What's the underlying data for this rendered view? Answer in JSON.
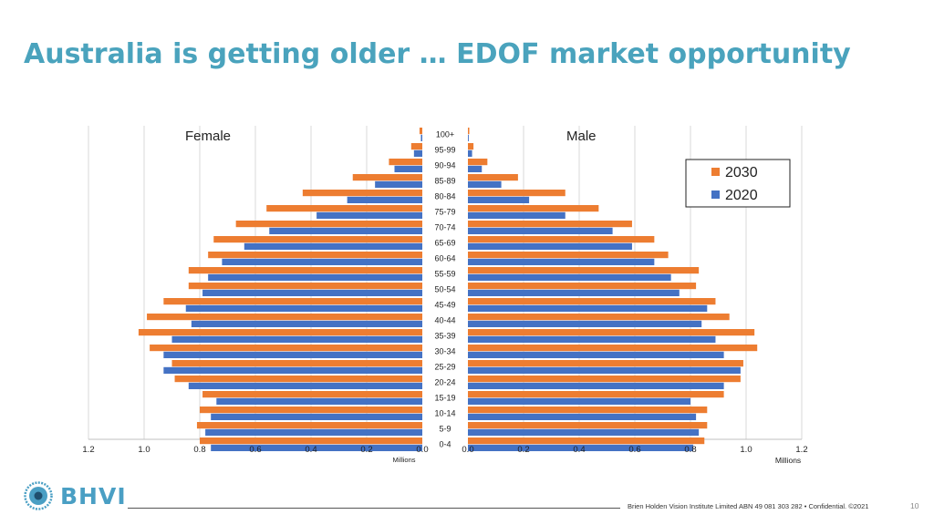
{
  "slide": {
    "title": "Australia is getting older … EDOF market opportunity",
    "footer": "Brien Holden Vision Institute Limited ABN 49 081 303 282 • Confidential. ©2021",
    "page_number": "10",
    "logo_text": "BHVI"
  },
  "colors": {
    "title": "#4aa3bd",
    "s2030": "#ed7d31",
    "s2020": "#4472c4",
    "grid": "#d9d9d9"
  },
  "chart_data": {
    "type": "bar",
    "orientation": "horizontal-population-pyramid",
    "categories": [
      "100+",
      "95-99",
      "90-94",
      "85-89",
      "80-84",
      "75-79",
      "70-74",
      "65-69",
      "60-64",
      "55-59",
      "50-54",
      "45-49",
      "40-44",
      "35-39",
      "30-34",
      "25-29",
      "20-24",
      "15-19",
      "10-14",
      "5-9",
      "0-4"
    ],
    "panels": [
      {
        "name": "Female",
        "series": [
          {
            "name": "2030",
            "values": [
              0.01,
              0.04,
              0.12,
              0.25,
              0.43,
              0.56,
              0.67,
              0.75,
              0.77,
              0.84,
              0.84,
              0.93,
              0.99,
              1.02,
              0.98,
              0.9,
              0.89,
              0.79,
              0.8,
              0.81,
              0.8
            ]
          },
          {
            "name": "2020",
            "values": [
              0.005,
              0.03,
              0.1,
              0.17,
              0.27,
              0.38,
              0.55,
              0.64,
              0.72,
              0.77,
              0.79,
              0.85,
              0.83,
              0.9,
              0.93,
              0.93,
              0.84,
              0.74,
              0.76,
              0.78,
              0.76
            ]
          }
        ]
      },
      {
        "name": "Male",
        "series": [
          {
            "name": "2030",
            "values": [
              0.005,
              0.02,
              0.07,
              0.18,
              0.35,
              0.47,
              0.59,
              0.67,
              0.72,
              0.83,
              0.82,
              0.89,
              0.94,
              1.03,
              1.04,
              0.99,
              0.98,
              0.92,
              0.86,
              0.86,
              0.85
            ]
          },
          {
            "name": "2020",
            "values": [
              0.003,
              0.015,
              0.05,
              0.12,
              0.22,
              0.35,
              0.52,
              0.59,
              0.67,
              0.73,
              0.76,
              0.86,
              0.84,
              0.89,
              0.92,
              0.98,
              0.92,
              0.8,
              0.82,
              0.83,
              0.81
            ]
          }
        ]
      }
    ],
    "xlim": [
      0,
      1.2
    ],
    "ticks": [
      "0.0",
      "0.2",
      "0.4",
      "0.6",
      "0.8",
      "1.0",
      "1.2"
    ],
    "xlabel": "Millions",
    "legend": [
      "2030",
      "2020"
    ],
    "legend_position": "top-right",
    "grid": true
  }
}
